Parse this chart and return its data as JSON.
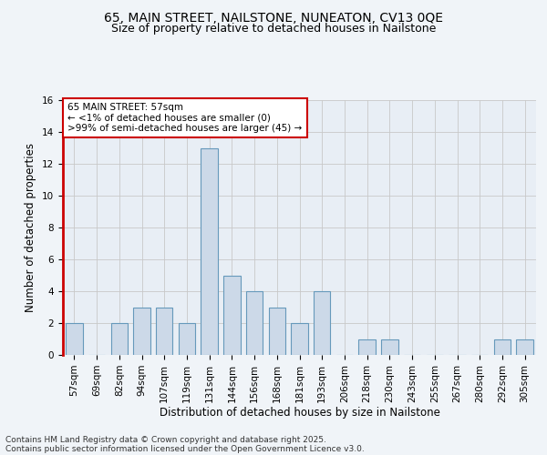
{
  "title": "65, MAIN STREET, NAILSTONE, NUNEATON, CV13 0QE",
  "subtitle": "Size of property relative to detached houses in Nailstone",
  "xlabel": "Distribution of detached houses by size in Nailstone",
  "ylabel": "Number of detached properties",
  "categories": [
    "57sqm",
    "69sqm",
    "82sqm",
    "94sqm",
    "107sqm",
    "119sqm",
    "131sqm",
    "144sqm",
    "156sqm",
    "168sqm",
    "181sqm",
    "193sqm",
    "206sqm",
    "218sqm",
    "230sqm",
    "243sqm",
    "255sqm",
    "267sqm",
    "280sqm",
    "292sqm",
    "305sqm"
  ],
  "values": [
    2,
    0,
    2,
    3,
    3,
    2,
    13,
    5,
    4,
    3,
    2,
    4,
    0,
    1,
    1,
    0,
    0,
    0,
    0,
    1,
    1
  ],
  "bar_color": "#ccd9e8",
  "bar_edge_color": "#6699bb",
  "highlight_color": "#cc0000",
  "grid_color": "#c8c8c8",
  "plot_bg_color": "#e8eef5",
  "background_color": "#f0f4f8",
  "annotation_text": "65 MAIN STREET: 57sqm\n← <1% of detached houses are smaller (0)\n>99% of semi-detached houses are larger (45) →",
  "annotation_box_color": "#cc0000",
  "footer_line1": "Contains HM Land Registry data © Crown copyright and database right 2025.",
  "footer_line2": "Contains public sector information licensed under the Open Government Licence v3.0.",
  "ylim": [
    0,
    16
  ],
  "yticks": [
    0,
    2,
    4,
    6,
    8,
    10,
    12,
    14,
    16
  ],
  "title_fontsize": 10,
  "subtitle_fontsize": 9,
  "axis_label_fontsize": 8.5,
  "tick_fontsize": 7.5,
  "annotation_fontsize": 7.5,
  "footer_fontsize": 6.5
}
